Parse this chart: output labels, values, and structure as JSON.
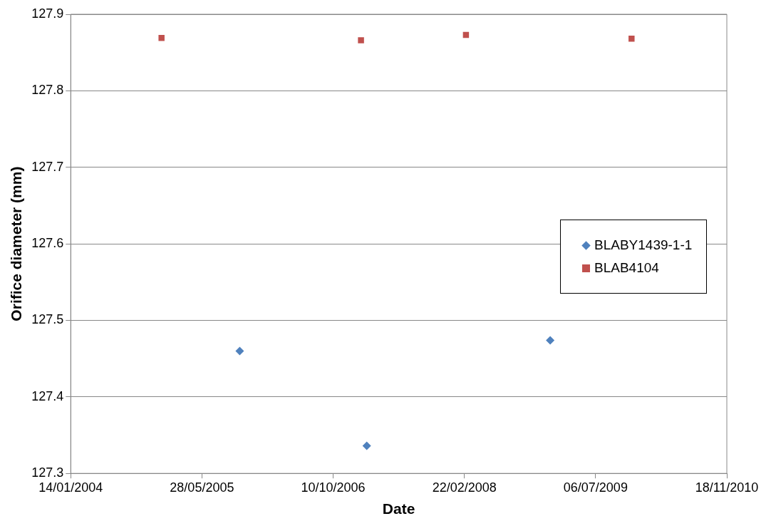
{
  "chart_data": {
    "type": "scatter",
    "xlabel": "Date",
    "ylabel": "Orifice diameter (mm)",
    "series": [
      {
        "name": "BLABY1439-1-1",
        "color": "#4f81bd",
        "marker": "diamond",
        "x": [
          "2005-10-19",
          "2007-02-15",
          "2009-01-14"
        ],
        "values": [
          127.46,
          127.336,
          127.474
        ]
      },
      {
        "name": "BLAB4104",
        "color": "#c0504d",
        "marker": "square",
        "x": [
          "2004-12-25",
          "2007-01-24",
          "2008-02-28",
          "2009-11-20"
        ],
        "values": [
          127.869,
          127.866,
          127.873,
          127.868
        ]
      }
    ],
    "xlim": [
      "2004-01-14",
      "2010-11-18"
    ],
    "xticks": [
      {
        "value": "2004-01-14",
        "label": "14/01/2004"
      },
      {
        "value": "2005-05-28",
        "label": "28/05/2005"
      },
      {
        "value": "2006-10-10",
        "label": "10/10/2006"
      },
      {
        "value": "2008-02-22",
        "label": "22/02/2008"
      },
      {
        "value": "2009-07-06",
        "label": "06/07/2009"
      },
      {
        "value": "2010-11-18",
        "label": "18/11/2010"
      }
    ],
    "ylim": [
      127.3,
      127.9
    ],
    "yticks": [
      127.3,
      127.4,
      127.5,
      127.6,
      127.7,
      127.8,
      127.9
    ],
    "grid": "y",
    "legend": "right"
  }
}
